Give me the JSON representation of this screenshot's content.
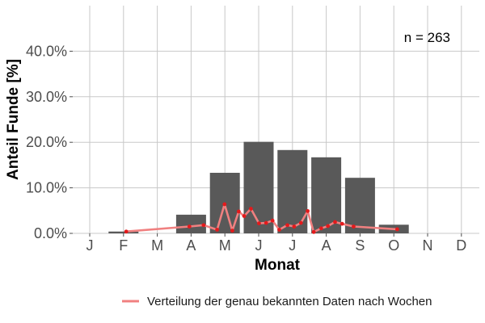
{
  "chart_data": {
    "type": "bar",
    "xlabel": "Monat",
    "ylabel": "Anteil Funde [%]",
    "categories": [
      "J",
      "F",
      "M",
      "A",
      "M",
      "J",
      "J",
      "A",
      "S",
      "O",
      "N",
      "D"
    ],
    "ylim": [
      0,
      50
    ],
    "yticks": [
      0,
      10,
      20,
      30,
      40
    ],
    "ytick_labels": [
      "0.0%",
      "10.0%",
      "20.0%",
      "30.0%",
      "40.0%"
    ],
    "grid": true,
    "annotation": "n = 263",
    "bar_color": "#595959",
    "series": [
      {
        "kind": "bar",
        "values": [
          0,
          0.4,
          0,
          4.1,
          13.3,
          20.1,
          18.3,
          16.7,
          12.2,
          1.9,
          0,
          0
        ]
      },
      {
        "kind": "line",
        "name": "Verteilung der genau bekannten Daten nach Wochen",
        "color": "#f08080",
        "point_color": "#e41a1c",
        "x": [
          2.08,
          3.95,
          4.37,
          4.77,
          4.99,
          5.22,
          5.41,
          5.57,
          5.77,
          6.01,
          6.22,
          6.41,
          6.61,
          6.85,
          7.05,
          7.25,
          7.45,
          7.63,
          7.85,
          8.05,
          8.26,
          8.47,
          8.81,
          10.1
        ],
        "y": [
          0.4,
          1.5,
          1.8,
          0.8,
          6.4,
          0.6,
          4.8,
          3.8,
          5.4,
          2.2,
          2.3,
          2.8,
          0.8,
          1.8,
          1.5,
          2.3,
          4.9,
          0.3,
          1.1,
          1.6,
          2.5,
          2.1,
          1.5,
          0.9
        ]
      }
    ],
    "legend": {
      "position": "bottom"
    }
  }
}
